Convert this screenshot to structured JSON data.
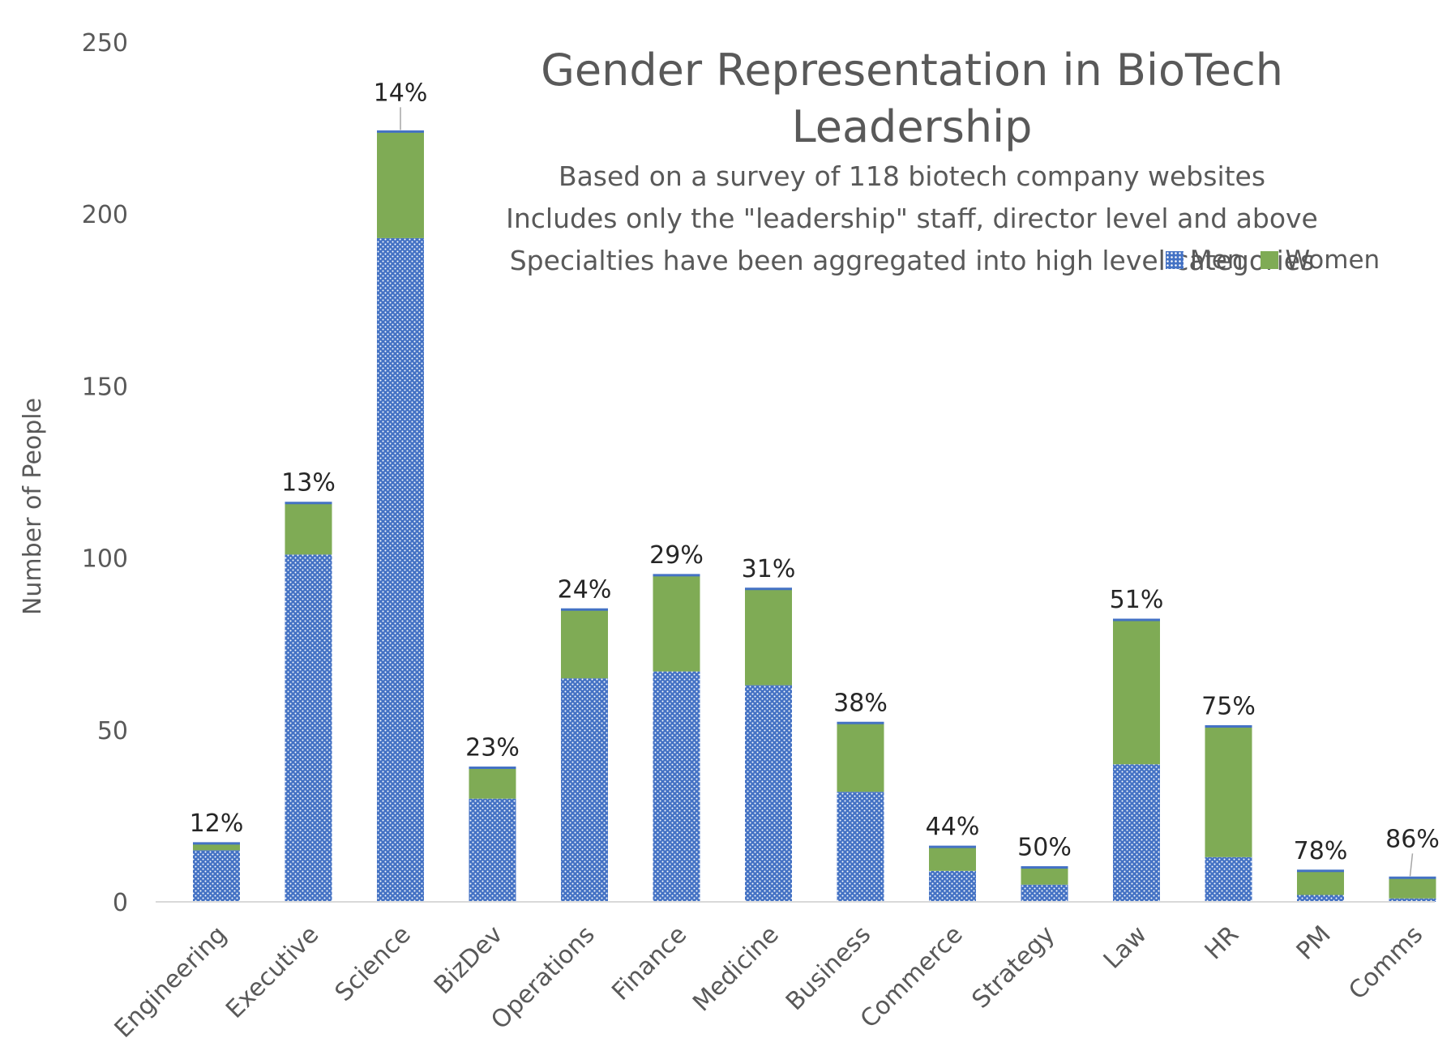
{
  "chart_data": {
    "type": "bar",
    "stacked": true,
    "title": "Gender Representation in BioTech Leadership",
    "subtitle": [
      "Based on a survey of 118 biotech company websites",
      "Includes only the \"leadership\" staff, director level and above",
      "Specialties have been aggregated into high level categories"
    ],
    "xlabel": "",
    "ylabel": "Number of People",
    "ylim": [
      0,
      250
    ],
    "yticks": [
      0,
      50,
      100,
      150,
      200,
      250
    ],
    "grid": false,
    "legend_position": "top-right",
    "categories": [
      "Engineering",
      "Executive",
      "Science",
      "BizDev",
      "Operations",
      "Finance",
      "Medicine",
      "Business",
      "Commerce",
      "Strategy",
      "Law",
      "HR",
      "PM",
      "Comms"
    ],
    "series": [
      {
        "name": "Men",
        "color": "#4472C4",
        "values": [
          15,
          101,
          193,
          30,
          65,
          67,
          63,
          32,
          9,
          5,
          40,
          13,
          2,
          1
        ]
      },
      {
        "name": "Women",
        "color": "#7FAB55",
        "values": [
          2,
          15,
          31,
          9,
          20,
          28,
          28,
          20,
          7,
          5,
          42,
          38,
          7,
          6
        ]
      }
    ],
    "data_labels": [
      "12%",
      "13%",
      "14%",
      "23%",
      "24%",
      "29%",
      "31%",
      "38%",
      "44%",
      "50%",
      "51%",
      "75%",
      "78%",
      "86%"
    ]
  },
  "colors": {
    "men": "#4472C4",
    "women": "#7FAB55",
    "text": "#595959",
    "axis": "#D9D9D9"
  }
}
